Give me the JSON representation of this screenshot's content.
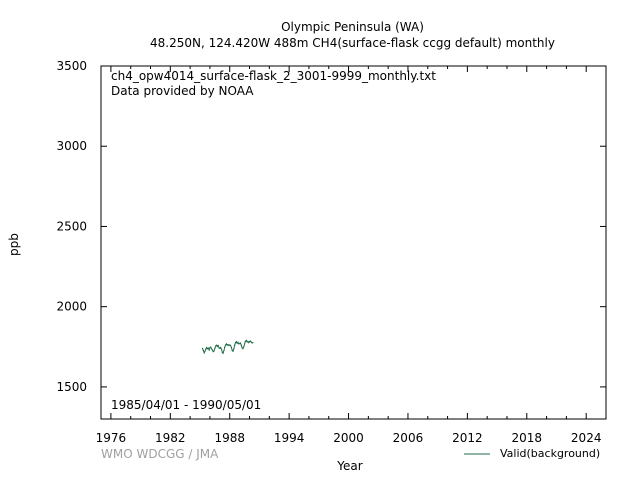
{
  "header": {
    "title": "Olympic Peninsula (WA)",
    "subtitle": "48.250N, 124.420W 488m    CH4(surface-flask ccgg default) monthly"
  },
  "annotations": {
    "file_name": "ch4_opw4014_surface-flask_2_3001-9999_monthly.txt",
    "provider": "Data provided by NOAA",
    "date_range": "1985/04/01 - 1990/05/01"
  },
  "footer": {
    "watermark": "WMO WDCGG / JMA"
  },
  "colors": {
    "series": "#1f6e48",
    "watermark": "#a0a0a0",
    "axis": "#000000"
  },
  "chart_data": {
    "type": "line",
    "xlabel": "Year",
    "ylabel": "ppb",
    "xlim": [
      1975,
      2026
    ],
    "ylim": [
      1300,
      3500
    ],
    "xticks": [
      1976,
      1982,
      1988,
      1994,
      2000,
      2006,
      2012,
      2018,
      2024
    ],
    "yticks": [
      1500,
      2000,
      2500,
      3000,
      3500
    ],
    "grid": false,
    "legend_position": "bottom-right",
    "series": [
      {
        "name": "Valid(background)",
        "x": [
          1985.25,
          1985.33,
          1985.42,
          1985.5,
          1985.58,
          1985.67,
          1985.75,
          1985.83,
          1985.92,
          1986.0,
          1986.08,
          1986.17,
          1986.25,
          1986.33,
          1986.42,
          1986.5,
          1986.58,
          1986.67,
          1986.75,
          1986.83,
          1986.92,
          1987.0,
          1987.08,
          1987.17,
          1987.25,
          1987.33,
          1987.42,
          1987.5,
          1987.58,
          1987.67,
          1987.75,
          1987.83,
          1987.92,
          1988.0,
          1988.08,
          1988.17,
          1988.25,
          1988.33,
          1988.42,
          1988.5,
          1988.58,
          1988.67,
          1988.75,
          1988.83,
          1988.92,
          1989.0,
          1989.08,
          1989.17,
          1989.25,
          1989.33,
          1989.42,
          1989.5,
          1989.58,
          1989.67,
          1989.75,
          1989.83,
          1989.92,
          1990.0,
          1990.08,
          1990.17,
          1990.25,
          1990.33
        ],
        "y": [
          1740,
          1728,
          1712,
          1722,
          1735,
          1745,
          1738,
          1742,
          1730,
          1745,
          1748,
          1736,
          1730,
          1720,
          1724,
          1740,
          1755,
          1760,
          1752,
          1758,
          1744,
          1740,
          1746,
          1734,
          1716,
          1710,
          1728,
          1748,
          1762,
          1768,
          1760,
          1764,
          1758,
          1762,
          1758,
          1746,
          1728,
          1722,
          1738,
          1760,
          1775,
          1782,
          1772,
          1778,
          1768,
          1770,
          1774,
          1760,
          1744,
          1738,
          1750,
          1768,
          1784,
          1790,
          1780,
          1784,
          1776,
          1782,
          1786,
          1780,
          1774,
          1776
        ]
      }
    ]
  }
}
